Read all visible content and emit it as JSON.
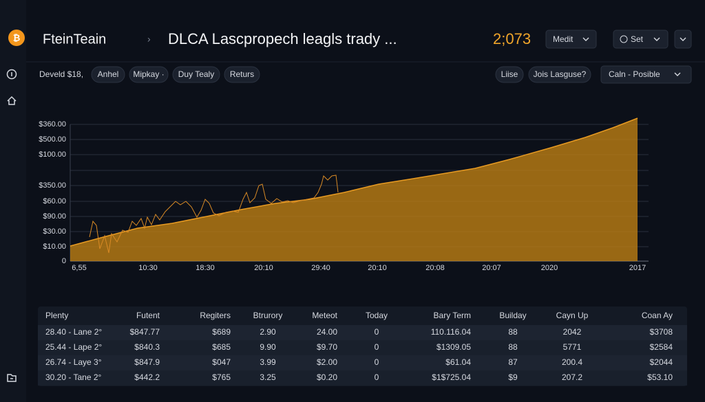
{
  "header": {
    "app_name": "FteinTeain",
    "separator": "›",
    "title": "DLCA Lascpropech leagls trady ...",
    "price": "2;073",
    "buttons": [
      "Medit",
      "Set"
    ]
  },
  "toolbar": {
    "label": "Develd $18,",
    "pills": [
      "Anhel",
      "Mipkay ·",
      "Duy Tealy",
      "Returs"
    ],
    "right_pills": [
      "Liise",
      "Jois Lasguse?"
    ],
    "dropdown": "Caln - Posible"
  },
  "chart": {
    "y_labels": [
      "$360.00",
      "$500.00",
      "$100.00",
      "$350.00",
      "$60.00",
      "$90.00",
      "$30.00",
      "$10.00",
      "0"
    ],
    "x_labels": [
      "6,55",
      "10:30",
      "18:30",
      "20:10",
      "29:40",
      "20:10",
      "20:08",
      "20:07",
      "2020",
      "2017"
    ]
  },
  "table": {
    "header": [
      "Plenty",
      "Futent",
      "Regiters",
      "Btrurory",
      "Meteot",
      "Today",
      "Bary Term",
      "Builday",
      "Cayn Up",
      "Coan Ay"
    ],
    "rows": [
      [
        "28.40 - Lane 2°",
        "$847.77",
        "$689",
        "2.90",
        "24.00",
        "0",
        "110.116.04",
        "88",
        "2042",
        "$3708"
      ],
      [
        "25.44 - Lape 2°",
        "$840.3",
        "$685",
        "9.90",
        "$9.70",
        "0",
        "$1309.05",
        "88",
        "5771",
        "$2584"
      ],
      [
        "26.74 - Laye 3°",
        "$847.9",
        "$047",
        "3.99",
        "$2.00",
        "0",
        "$61.04",
        "87",
        "200.4",
        "$2044"
      ],
      [
        "30.20 - Tane 2°",
        "$442.2",
        "$765",
        "3.25",
        "$0.20",
        "0",
        "$1$725.04",
        "$9",
        "207.2",
        "$53.10"
      ]
    ]
  }
}
